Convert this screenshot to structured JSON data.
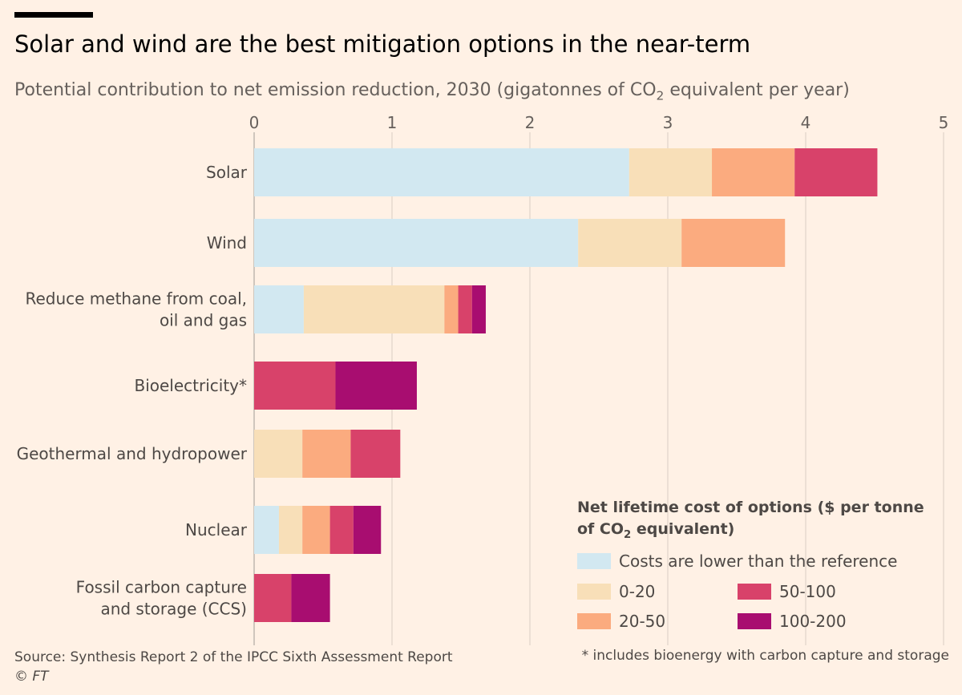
{
  "title": "Solar and wind are the best mitigation options in the near-term",
  "subtitle_main": "Potential contribution to net emission reduction, 2030 (gigatonnes of CO",
  "subtitle_sub": "2",
  "subtitle_end": " equivalent per year)",
  "legend": {
    "title_main": "Net lifetime cost of options ($ per tonne of CO",
    "title_sub": "2",
    "title_end": " equivalent)"
  },
  "source": "Source: Synthesis Report 2 of the IPCC Sixth Assessment Report",
  "copyright": "© FT",
  "footnote": "* includes bioenergy with carbon capture and storage",
  "chart_data": {
    "type": "bar",
    "orientation": "horizontal",
    "stacked": true,
    "xlim": [
      0,
      5
    ],
    "xticks": [
      "0",
      "1",
      "2",
      "3",
      "4",
      "5"
    ],
    "grid": true,
    "categories": [
      [
        "Solar"
      ],
      [
        "Wind"
      ],
      [
        "Reduce methane from coal,",
        "oil and gas"
      ],
      [
        "Bioelectricity*"
      ],
      [
        "Geothermal and hydropower"
      ],
      [
        "Nuclear"
      ],
      [
        "Fossil carbon capture",
        "and storage (CCS)"
      ]
    ],
    "series": [
      {
        "name": "Costs are lower than the reference",
        "color": "#d2e8f1",
        "values": [
          2.72,
          2.35,
          0.36,
          0,
          0,
          0.18,
          0
        ]
      },
      {
        "name": "0-20",
        "color": "#f8dfb8",
        "values": [
          0.6,
          0.75,
          1.02,
          0,
          0.35,
          0.17,
          0
        ]
      },
      {
        "name": "20-50",
        "color": "#fbab7f",
        "values": [
          0.6,
          0.75,
          0.1,
          0,
          0.35,
          0.2,
          0
        ]
      },
      {
        "name": "50-100",
        "color": "#d8426a",
        "values": [
          0.6,
          0,
          0.1,
          0.59,
          0.36,
          0.17,
          0.27
        ]
      },
      {
        "name": "100-200",
        "color": "#a80d70",
        "values": [
          0,
          0,
          0.1,
          0.59,
          0,
          0.2,
          0.28
        ]
      }
    ]
  }
}
